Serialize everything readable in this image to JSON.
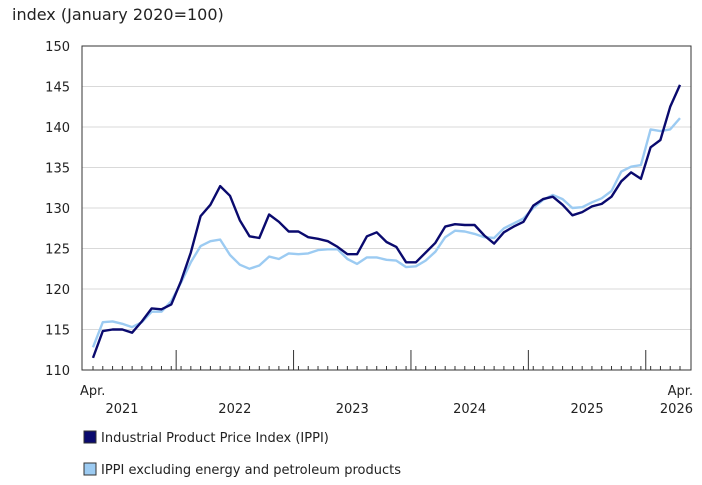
{
  "chart_data": {
    "type": "line",
    "title": "",
    "ylabel": "index (January 2020=100)",
    "xlabel": "",
    "ylim": [
      110,
      150
    ],
    "yticks": [
      110,
      115,
      120,
      125,
      130,
      135,
      140,
      145,
      150
    ],
    "grid": true,
    "legend_position": "bottom-left",
    "x_start": "2021-04",
    "x_end": "2026-04",
    "x_edge_labels": [
      {
        "top": "Apr.",
        "bottom": "2021"
      },
      {
        "top": "Apr.",
        "bottom": "2026"
      }
    ],
    "year_labels": [
      {
        "year": "2022",
        "center": "2022-06"
      },
      {
        "year": "2023",
        "center": "2023-06"
      },
      {
        "year": "2024",
        "center": "2024-06"
      },
      {
        "year": "2025",
        "center": "2025-06"
      }
    ],
    "year_ticks": [
      "2021-12",
      "2022-12",
      "2023-12",
      "2024-12",
      "2025-12"
    ],
    "series": [
      {
        "name": "Industrial Product Price Index (IPPI)",
        "color": "#0a0a6e",
        "values": [
          111.5,
          114.8,
          115.0,
          115.0,
          114.6,
          116.0,
          117.6,
          117.5,
          118.1,
          121.0,
          124.5,
          129.0,
          130.4,
          132.7,
          131.5,
          128.5,
          126.5,
          126.3,
          129.2,
          128.3,
          127.1,
          127.1,
          126.4,
          126.2,
          125.9,
          125.2,
          124.3,
          124.3,
          126.5,
          127.0,
          125.8,
          125.2,
          123.3,
          123.3,
          124.5,
          125.7,
          127.7,
          128.0,
          127.9,
          127.9,
          126.6,
          125.6,
          127.0,
          127.7,
          128.3,
          130.3,
          131.1,
          131.4,
          130.4,
          129.1,
          129.5,
          130.2,
          130.5,
          131.4,
          133.3,
          134.4,
          133.6,
          137.5,
          138.4,
          142.5,
          145.2
        ]
      },
      {
        "name": "IPPI excluding energy and petroleum products",
        "color": "#9ccbf2",
        "values": [
          112.8,
          115.9,
          116.0,
          115.7,
          115.3,
          115.9,
          117.2,
          117.2,
          118.5,
          120.8,
          123.3,
          125.3,
          125.9,
          126.1,
          124.2,
          123.0,
          122.5,
          122.9,
          124.0,
          123.7,
          124.4,
          124.3,
          124.4,
          124.8,
          124.9,
          124.9,
          123.7,
          123.1,
          123.9,
          123.9,
          123.6,
          123.5,
          122.7,
          122.8,
          123.5,
          124.6,
          126.4,
          127.2,
          127.1,
          126.8,
          126.4,
          126.3,
          127.5,
          128.1,
          128.7,
          130.0,
          131.0,
          131.6,
          131.1,
          130.0,
          130.1,
          130.7,
          131.2,
          132.1,
          134.5,
          135.1,
          135.3,
          139.7,
          139.5,
          139.7,
          141.1
        ]
      }
    ]
  }
}
